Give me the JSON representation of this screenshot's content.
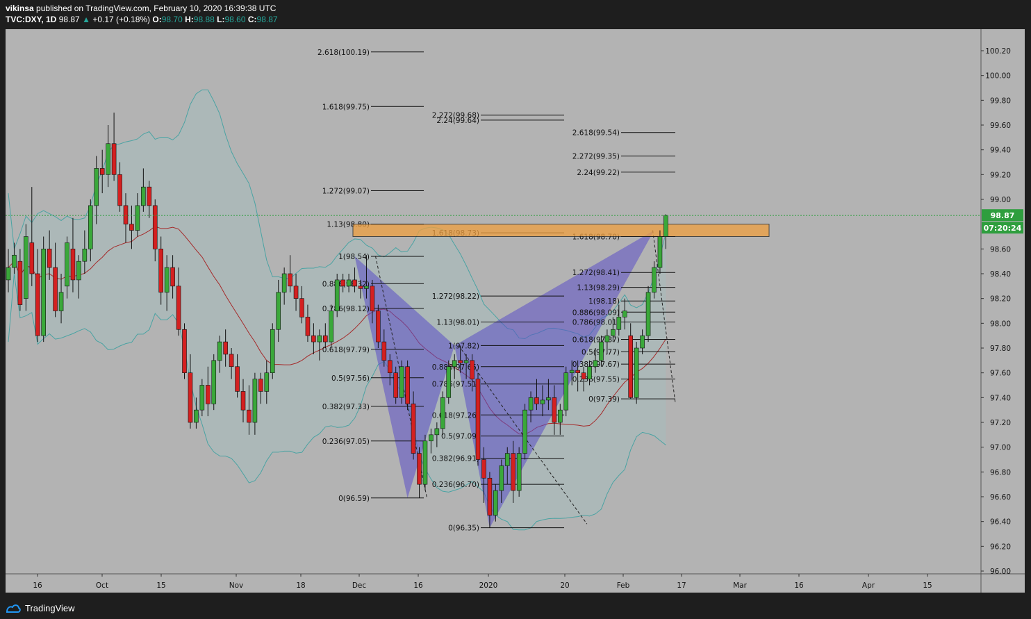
{
  "header": {
    "publisher": "vikinsa",
    "published_text": "published on TradingView.com, February 10, 2020 16:39:38 UTC",
    "symbol": "TVC:DXY, 1D",
    "last": "98.87",
    "change": "+0.17 (+0.18%)",
    "o_label": "O:",
    "o_val": "98.70",
    "h_label": "H:",
    "h_val": "98.88",
    "l_label": "L:",
    "l_val": "98.60",
    "c_label": "C:",
    "c_val": "98.87"
  },
  "footer": {
    "brand": "TradingView"
  },
  "price_tag": {
    "price": "98.87",
    "countdown": "07:20:24"
  },
  "colors": {
    "background": "#b3b3b3",
    "up": "#3aa83a",
    "down": "#d42020",
    "band": "#4ba3a3",
    "ma": "#a52a2a",
    "pattern": "#5b4fc7",
    "zone": "#f0a040",
    "price_tag": "#2e9e3e"
  },
  "chart_data": {
    "type": "candlestick",
    "ylim": [
      96.0,
      100.3
    ],
    "y_ticks": [
      "100.20",
      "100.00",
      "99.80",
      "99.60",
      "99.40",
      "99.20",
      "99.00",
      "98.60",
      "98.40",
      "98.20",
      "98.00",
      "97.80",
      "97.60",
      "97.40",
      "97.20",
      "97.00",
      "96.80",
      "96.60",
      "96.40",
      "96.20",
      "96.00"
    ],
    "x_labels": [
      "16",
      "Oct",
      "15",
      "Nov",
      "18",
      "Dec",
      "16",
      "2020",
      "20",
      "Feb",
      "17",
      "Mar",
      "16",
      "Apr",
      "15"
    ],
    "candles": [
      {
        "o": 98.35,
        "h": 98.6,
        "l": 98.25,
        "c": 98.45
      },
      {
        "o": 98.45,
        "h": 98.65,
        "l": 98.4,
        "c": 98.55
      },
      {
        "o": 98.5,
        "h": 98.6,
        "l": 98.1,
        "c": 98.15
      },
      {
        "o": 98.2,
        "h": 98.8,
        "l": 98.1,
        "c": 98.7
      },
      {
        "o": 98.65,
        "h": 99.1,
        "l": 98.3,
        "c": 98.4
      },
      {
        "o": 98.4,
        "h": 98.6,
        "l": 97.85,
        "c": 97.9
      },
      {
        "o": 97.9,
        "h": 98.7,
        "l": 97.85,
        "c": 98.6
      },
      {
        "o": 98.6,
        "h": 98.75,
        "l": 98.35,
        "c": 98.45
      },
      {
        "o": 98.45,
        "h": 98.65,
        "l": 98.05,
        "c": 98.1
      },
      {
        "o": 98.1,
        "h": 98.4,
        "l": 98.0,
        "c": 98.25
      },
      {
        "o": 98.3,
        "h": 98.7,
        "l": 98.2,
        "c": 98.65
      },
      {
        "o": 98.6,
        "h": 98.85,
        "l": 98.25,
        "c": 98.35
      },
      {
        "o": 98.35,
        "h": 98.55,
        "l": 98.2,
        "c": 98.5
      },
      {
        "o": 98.5,
        "h": 98.75,
        "l": 98.4,
        "c": 98.6
      },
      {
        "o": 98.6,
        "h": 99.0,
        "l": 98.5,
        "c": 98.95
      },
      {
        "o": 98.95,
        "h": 99.35,
        "l": 98.8,
        "c": 99.25
      },
      {
        "o": 99.25,
        "h": 99.4,
        "l": 99.05,
        "c": 99.2
      },
      {
        "o": 99.2,
        "h": 99.6,
        "l": 99.1,
        "c": 99.45
      },
      {
        "o": 99.45,
        "h": 99.7,
        "l": 99.15,
        "c": 99.2
      },
      {
        "o": 99.2,
        "h": 99.3,
        "l": 98.9,
        "c": 98.95
      },
      {
        "o": 98.95,
        "h": 99.05,
        "l": 98.65,
        "c": 98.8
      },
      {
        "o": 98.8,
        "h": 98.95,
        "l": 98.6,
        "c": 98.75
      },
      {
        "o": 98.75,
        "h": 99.05,
        "l": 98.7,
        "c": 98.95
      },
      {
        "o": 98.95,
        "h": 99.25,
        "l": 98.9,
        "c": 99.1
      },
      {
        "o": 99.1,
        "h": 99.15,
        "l": 98.85,
        "c": 98.95
      },
      {
        "o": 98.95,
        "h": 99.0,
        "l": 98.5,
        "c": 98.6
      },
      {
        "o": 98.6,
        "h": 98.7,
        "l": 98.15,
        "c": 98.25
      },
      {
        "o": 98.25,
        "h": 98.55,
        "l": 98.1,
        "c": 98.45
      },
      {
        "o": 98.45,
        "h": 98.55,
        "l": 98.2,
        "c": 98.3
      },
      {
        "o": 98.3,
        "h": 98.45,
        "l": 97.9,
        "c": 97.95
      },
      {
        "o": 97.95,
        "h": 98.0,
        "l": 97.55,
        "c": 97.6
      },
      {
        "o": 97.6,
        "h": 97.75,
        "l": 97.15,
        "c": 97.2
      },
      {
        "o": 97.2,
        "h": 97.4,
        "l": 97.15,
        "c": 97.3
      },
      {
        "o": 97.3,
        "h": 97.55,
        "l": 97.25,
        "c": 97.5
      },
      {
        "o": 97.5,
        "h": 97.65,
        "l": 97.25,
        "c": 97.35
      },
      {
        "o": 97.35,
        "h": 97.75,
        "l": 97.3,
        "c": 97.7
      },
      {
        "o": 97.7,
        "h": 97.9,
        "l": 97.6,
        "c": 97.85
      },
      {
        "o": 97.85,
        "h": 97.95,
        "l": 97.65,
        "c": 97.75
      },
      {
        "o": 97.75,
        "h": 97.8,
        "l": 97.55,
        "c": 97.65
      },
      {
        "o": 97.65,
        "h": 97.75,
        "l": 97.4,
        "c": 97.45
      },
      {
        "o": 97.45,
        "h": 97.55,
        "l": 97.2,
        "c": 97.3
      },
      {
        "o": 97.3,
        "h": 97.5,
        "l": 97.1,
        "c": 97.2
      },
      {
        "o": 97.2,
        "h": 97.6,
        "l": 97.1,
        "c": 97.55
      },
      {
        "o": 97.55,
        "h": 97.6,
        "l": 97.35,
        "c": 97.45
      },
      {
        "o": 97.45,
        "h": 97.7,
        "l": 97.35,
        "c": 97.6
      },
      {
        "o": 97.6,
        "h": 98.0,
        "l": 97.55,
        "c": 97.95
      },
      {
        "o": 97.95,
        "h": 98.35,
        "l": 97.85,
        "c": 98.25
      },
      {
        "o": 98.25,
        "h": 98.45,
        "l": 98.15,
        "c": 98.4
      },
      {
        "o": 98.4,
        "h": 98.55,
        "l": 98.25,
        "c": 98.3
      },
      {
        "o": 98.3,
        "h": 98.4,
        "l": 98.1,
        "c": 98.2
      },
      {
        "o": 98.2,
        "h": 98.3,
        "l": 98.0,
        "c": 98.05
      },
      {
        "o": 98.05,
        "h": 98.15,
        "l": 97.85,
        "c": 97.9
      },
      {
        "o": 97.9,
        "h": 98.0,
        "l": 97.75,
        "c": 97.85
      },
      {
        "o": 97.85,
        "h": 97.95,
        "l": 97.7,
        "c": 97.9
      },
      {
        "o": 97.9,
        "h": 98.0,
        "l": 97.8,
        "c": 97.85
      },
      {
        "o": 97.85,
        "h": 98.15,
        "l": 97.8,
        "c": 98.1
      },
      {
        "o": 98.1,
        "h": 98.4,
        "l": 98.05,
        "c": 98.35
      },
      {
        "o": 98.35,
        "h": 98.4,
        "l": 98.25,
        "c": 98.3
      },
      {
        "o": 98.3,
        "h": 98.4,
        "l": 98.25,
        "c": 98.35
      },
      {
        "o": 98.35,
        "h": 98.45,
        "l": 98.25,
        "c": 98.3
      },
      {
        "o": 98.3,
        "h": 98.35,
        "l": 98.2,
        "c": 98.28
      },
      {
        "o": 98.28,
        "h": 98.55,
        "l": 98.2,
        "c": 98.3
      },
      {
        "o": 98.3,
        "h": 98.35,
        "l": 98.0,
        "c": 98.1
      },
      {
        "o": 98.1,
        "h": 98.15,
        "l": 97.8,
        "c": 97.85
      },
      {
        "o": 97.85,
        "h": 97.95,
        "l": 97.65,
        "c": 97.7
      },
      {
        "o": 97.7,
        "h": 97.75,
        "l": 97.5,
        "c": 97.6
      },
      {
        "o": 97.6,
        "h": 97.65,
        "l": 97.35,
        "c": 97.4
      },
      {
        "o": 97.4,
        "h": 97.7,
        "l": 97.35,
        "c": 97.65
      },
      {
        "o": 97.65,
        "h": 97.7,
        "l": 97.3,
        "c": 97.35
      },
      {
        "o": 97.35,
        "h": 97.45,
        "l": 96.9,
        "c": 96.95
      },
      {
        "o": 96.95,
        "h": 97.0,
        "l": 96.59,
        "c": 96.7
      },
      {
        "o": 96.7,
        "h": 97.1,
        "l": 96.65,
        "c": 97.05
      },
      {
        "o": 97.05,
        "h": 97.15,
        "l": 96.95,
        "c": 97.1
      },
      {
        "o": 97.1,
        "h": 97.2,
        "l": 97.0,
        "c": 97.15
      },
      {
        "o": 97.15,
        "h": 97.45,
        "l": 97.1,
        "c": 97.4
      },
      {
        "o": 97.4,
        "h": 97.7,
        "l": 97.35,
        "c": 97.65
      },
      {
        "o": 97.65,
        "h": 97.75,
        "l": 97.55,
        "c": 97.7
      },
      {
        "o": 97.7,
        "h": 97.82,
        "l": 97.6,
        "c": 97.68
      },
      {
        "o": 97.68,
        "h": 97.75,
        "l": 97.55,
        "c": 97.7
      },
      {
        "o": 97.7,
        "h": 97.75,
        "l": 97.45,
        "c": 97.55
      },
      {
        "o": 97.55,
        "h": 97.6,
        "l": 96.85,
        "c": 96.9
      },
      {
        "o": 96.9,
        "h": 97.0,
        "l": 96.55,
        "c": 96.75
      },
      {
        "o": 96.75,
        "h": 96.8,
        "l": 96.35,
        "c": 96.45
      },
      {
        "o": 96.45,
        "h": 96.7,
        "l": 96.4,
        "c": 96.65
      },
      {
        "o": 96.65,
        "h": 96.9,
        "l": 96.55,
        "c": 96.85
      },
      {
        "o": 96.85,
        "h": 97.0,
        "l": 96.7,
        "c": 96.95
      },
      {
        "o": 96.95,
        "h": 97.05,
        "l": 96.55,
        "c": 96.65
      },
      {
        "o": 96.65,
        "h": 97.0,
        "l": 96.6,
        "c": 96.95
      },
      {
        "o": 96.95,
        "h": 97.35,
        "l": 96.9,
        "c": 97.3
      },
      {
        "o": 97.3,
        "h": 97.45,
        "l": 97.2,
        "c": 97.4
      },
      {
        "o": 97.4,
        "h": 97.55,
        "l": 97.3,
        "c": 97.35
      },
      {
        "o": 97.35,
        "h": 97.5,
        "l": 97.25,
        "c": 97.38
      },
      {
        "o": 97.38,
        "h": 97.55,
        "l": 97.3,
        "c": 97.4
      },
      {
        "o": 97.4,
        "h": 97.5,
        "l": 97.1,
        "c": 97.2
      },
      {
        "o": 97.2,
        "h": 97.35,
        "l": 97.1,
        "c": 97.3
      },
      {
        "o": 97.3,
        "h": 97.65,
        "l": 97.25,
        "c": 97.6
      },
      {
        "o": 97.6,
        "h": 97.7,
        "l": 97.5,
        "c": 97.62
      },
      {
        "o": 97.62,
        "h": 97.7,
        "l": 97.45,
        "c": 97.6
      },
      {
        "o": 97.6,
        "h": 97.65,
        "l": 97.45,
        "c": 97.55
      },
      {
        "o": 97.55,
        "h": 97.7,
        "l": 97.5,
        "c": 97.65
      },
      {
        "o": 97.65,
        "h": 97.8,
        "l": 97.6,
        "c": 97.7
      },
      {
        "o": 97.7,
        "h": 97.9,
        "l": 97.65,
        "c": 97.85
      },
      {
        "o": 97.85,
        "h": 97.95,
        "l": 97.75,
        "c": 97.9
      },
      {
        "o": 97.9,
        "h": 98.05,
        "l": 97.85,
        "c": 97.95
      },
      {
        "o": 97.95,
        "h": 98.15,
        "l": 97.9,
        "c": 98.05
      },
      {
        "o": 98.05,
        "h": 98.2,
        "l": 97.95,
        "c": 98.1
      },
      {
        "o": 97.9,
        "h": 98.0,
        "l": 97.39,
        "c": 97.4
      },
      {
        "o": 97.4,
        "h": 97.85,
        "l": 97.35,
        "c": 97.8
      },
      {
        "o": 97.8,
        "h": 97.95,
        "l": 97.75,
        "c": 97.9
      },
      {
        "o": 97.9,
        "h": 98.3,
        "l": 97.85,
        "c": 98.25
      },
      {
        "o": 98.25,
        "h": 98.5,
        "l": 98.2,
        "c": 98.45
      },
      {
        "o": 98.45,
        "h": 98.75,
        "l": 98.4,
        "c": 98.7
      },
      {
        "o": 98.7,
        "h": 98.88,
        "l": 98.6,
        "c": 98.87
      }
    ],
    "fib_labels": [
      {
        "text": "2.618(100.19)",
        "price": 100.19,
        "side": "left",
        "set": "A"
      },
      {
        "text": "1.618(99.75)",
        "price": 99.75,
        "side": "left",
        "set": "A"
      },
      {
        "text": "1.272(99.07)",
        "price": 99.07,
        "side": "left",
        "set": "A"
      },
      {
        "text": "1.13(98.80)",
        "price": 98.8,
        "side": "left",
        "set": "A"
      },
      {
        "text": "1(98.54)",
        "price": 98.54,
        "side": "left",
        "set": "A"
      },
      {
        "text": "0.886(98.32)",
        "price": 98.32,
        "side": "left",
        "set": "A"
      },
      {
        "text": "0.786(98.12)",
        "price": 98.12,
        "side": "left",
        "set": "A"
      },
      {
        "text": "0.618(97.79)",
        "price": 97.79,
        "side": "left",
        "set": "A"
      },
      {
        "text": "0.5(97.56)",
        "price": 97.56,
        "side": "left",
        "set": "A"
      },
      {
        "text": "0.382(97.33)",
        "price": 97.33,
        "side": "left",
        "set": "A"
      },
      {
        "text": "0.236(97.05)",
        "price": 97.05,
        "side": "left",
        "set": "A"
      },
      {
        "text": "0(96.59)",
        "price": 96.59,
        "side": "left",
        "set": "A"
      },
      {
        "text": "2.272(99.68)",
        "price": 99.68,
        "side": "mid",
        "set": "B"
      },
      {
        "text": "2.24(99.64)",
        "price": 99.64,
        "side": "mid",
        "set": "B"
      },
      {
        "text": "1.618(98.73)",
        "price": 98.73,
        "side": "mid",
        "set": "B"
      },
      {
        "text": "1.272(98.22)",
        "price": 98.22,
        "side": "mid",
        "set": "B"
      },
      {
        "text": "1.13(98.01)",
        "price": 98.01,
        "side": "mid",
        "set": "B"
      },
      {
        "text": "1(97.82)",
        "price": 97.82,
        "side": "mid",
        "set": "B"
      },
      {
        "text": "0.886(97.65)",
        "price": 97.65,
        "side": "mid",
        "set": "B"
      },
      {
        "text": "0.786(97.51)",
        "price": 97.51,
        "side": "mid",
        "set": "B"
      },
      {
        "text": "0.618(97.26)",
        "price": 97.26,
        "side": "mid",
        "set": "B"
      },
      {
        "text": "0.5(97.09)",
        "price": 97.09,
        "side": "mid",
        "set": "B"
      },
      {
        "text": "0.382(96.91)",
        "price": 96.91,
        "side": "mid",
        "set": "B"
      },
      {
        "text": "0.236(96.70)",
        "price": 96.7,
        "side": "mid",
        "set": "B"
      },
      {
        "text": "0(96.35)",
        "price": 96.35,
        "side": "mid",
        "set": "B"
      },
      {
        "text": "2.618(99.54)",
        "price": 99.54,
        "side": "right",
        "set": "C"
      },
      {
        "text": "2.272(99.35)",
        "price": 99.35,
        "side": "right",
        "set": "C"
      },
      {
        "text": "2.24(99.22)",
        "price": 99.22,
        "side": "right",
        "set": "C"
      },
      {
        "text": "1.618(98.70)",
        "price": 98.7,
        "side": "right",
        "set": "C"
      },
      {
        "text": "1.272(98.41)",
        "price": 98.41,
        "side": "right",
        "set": "C"
      },
      {
        "text": "1.13(98.29)",
        "price": 98.29,
        "side": "right",
        "set": "C"
      },
      {
        "text": "1(98.18)",
        "price": 98.18,
        "side": "right",
        "set": "C"
      },
      {
        "text": "0.886(98.09)",
        "price": 98.09,
        "side": "right",
        "set": "C"
      },
      {
        "text": "0.786(98.01)",
        "price": 98.01,
        "side": "right",
        "set": "C"
      },
      {
        "text": "0.618(97.87)",
        "price": 97.87,
        "side": "right",
        "set": "C"
      },
      {
        "text": "0.5(97.77)",
        "price": 97.77,
        "side": "right",
        "set": "C"
      },
      {
        "text": "0.382(97.67)",
        "price": 97.67,
        "side": "right",
        "set": "C"
      },
      {
        "text": "0.236(97.55)",
        "price": 97.55,
        "side": "right",
        "set": "C"
      },
      {
        "text": "0(97.39)",
        "price": 97.39,
        "side": "right",
        "set": "C"
      }
    ],
    "zone": {
      "top": 98.8,
      "bottom": 98.7
    },
    "last_price": 98.87
  }
}
